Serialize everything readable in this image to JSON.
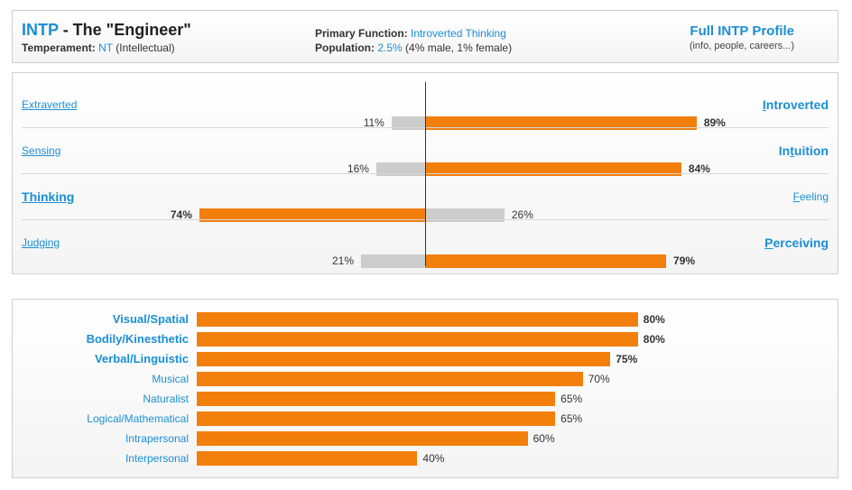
{
  "header": {
    "type_code": "INTP",
    "type_name": " - The \"Engineer\"",
    "temperament_label": "Temperament:",
    "temperament_value": "NT",
    "temperament_note": "(Intellectual)",
    "function_label": "Primary Function:",
    "function_value": "Introverted Thinking",
    "population_label": "Population:",
    "population_value": "2.5%",
    "population_note": "(4% male, 1% female)",
    "profile_link": "Full INTP Profile",
    "profile_sub": "(info, people, careers...)"
  },
  "colors": {
    "accent_blue": "#1a8fd6",
    "bar_orange": "#f27f0c",
    "bar_gray": "#cccccc"
  },
  "chart_data": [
    {
      "type": "bar",
      "orientation": "diverging-horizontal",
      "dichotomies": [
        {
          "left_first": "E",
          "left_rest": "xtraverted",
          "left_pct": 11,
          "right_first": "I",
          "right_rest": "ntroverted",
          "right_pct": 89,
          "dominant": "right"
        },
        {
          "left_first": "S",
          "left_rest": "ensing",
          "left_pct": 16,
          "right_first": "In",
          "right_underline": "t",
          "right_rest": "uition",
          "right_pct": 84,
          "dominant": "right"
        },
        {
          "left_first": "T",
          "left_rest": "hinking",
          "left_pct": 74,
          "right_first": "F",
          "right_rest": "eeling",
          "right_pct": 26,
          "dominant": "left"
        },
        {
          "left_first": "J",
          "left_rest": "udging",
          "left_pct": 21,
          "right_first": "P",
          "right_rest": "erceiving",
          "right_pct": 79,
          "dominant": "right"
        }
      ],
      "xlim": [
        0,
        100
      ],
      "grid": false
    },
    {
      "type": "bar",
      "orientation": "horizontal",
      "categories": [
        "Visual/Spatial",
        "Bodily/Kinesthetic",
        "Verbal/Linguistic",
        "Musical",
        "Naturalist",
        "Logical/Mathematical",
        "Intrapersonal",
        "Interpersonal"
      ],
      "values": [
        80,
        80,
        75,
        70,
        65,
        65,
        60,
        40
      ],
      "top_count": 3,
      "xlim": [
        0,
        100
      ],
      "grid": false
    }
  ]
}
